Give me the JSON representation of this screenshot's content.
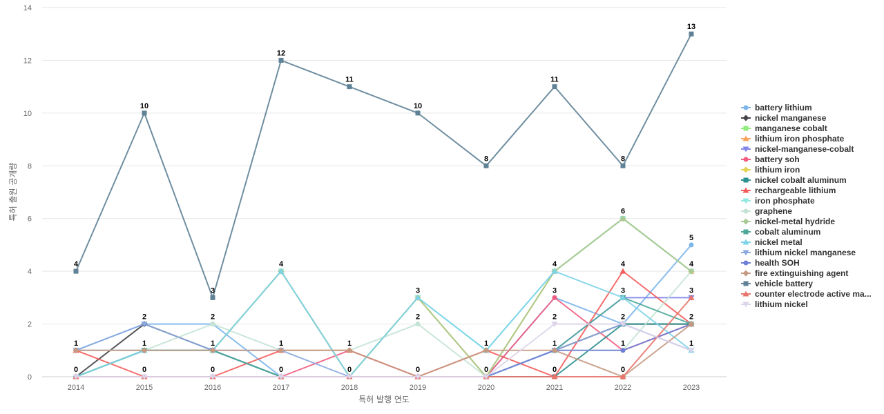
{
  "chart_data": {
    "type": "line",
    "title": "",
    "xlabel": "특허 발행 연도",
    "ylabel": "특허 출원 공개량",
    "ylim": [
      0,
      14
    ],
    "yticks": [
      0,
      2,
      4,
      6,
      8,
      10,
      12,
      14
    ],
    "x": [
      "2014",
      "2015",
      "2016",
      "2017",
      "2018",
      "2019",
      "2020",
      "2021",
      "2022",
      "2023"
    ],
    "grid": true,
    "legend_position": "right",
    "series": [
      {
        "name": "battery lithium",
        "color": "#7cb5ec",
        "marker": "circle",
        "values": [
          1,
          2,
          2,
          0,
          0,
          0,
          0,
          3,
          2,
          5
        ]
      },
      {
        "name": "nickel manganese",
        "color": "#434348",
        "marker": "diamond",
        "values": [
          0,
          2,
          1,
          0,
          0,
          0,
          0,
          1,
          2,
          2
        ]
      },
      {
        "name": "manganese cobalt",
        "color": "#90ed7d",
        "marker": "square",
        "values": [
          0,
          1,
          1,
          4,
          0,
          3,
          0,
          4,
          6,
          4
        ]
      },
      {
        "name": "lithium iron phosphate",
        "color": "#f7a35c",
        "marker": "triangle",
        "values": [
          0,
          1,
          1,
          4,
          0,
          3,
          0,
          4,
          6,
          4
        ]
      },
      {
        "name": "nickel-manganese-cobalt",
        "color": "#8085e9",
        "marker": "triangle-down",
        "values": [
          1,
          1,
          1,
          0,
          0,
          0,
          0,
          1,
          3,
          3
        ]
      },
      {
        "name": "battery soh",
        "color": "#f15c80",
        "marker": "circle",
        "values": [
          0,
          0,
          0,
          0,
          1,
          0,
          0,
          3,
          1,
          2
        ]
      },
      {
        "name": "lithium iron",
        "color": "#e4d354",
        "marker": "diamond",
        "values": [
          0,
          1,
          1,
          4,
          0,
          3,
          0,
          4,
          6,
          4
        ]
      },
      {
        "name": "nickel cobalt aluminum",
        "color": "#2b908f",
        "marker": "square",
        "values": [
          0,
          1,
          1,
          0,
          0,
          0,
          0,
          0,
          2,
          2
        ]
      },
      {
        "name": "rechargeable lithium",
        "color": "#f45b5b",
        "marker": "triangle",
        "values": [
          1,
          0,
          0,
          1,
          1,
          0,
          1,
          0,
          4,
          2
        ]
      },
      {
        "name": "iron phosphate",
        "color": "#91e8e1",
        "marker": "triangle-down",
        "values": [
          0,
          1,
          1,
          4,
          0,
          3,
          1,
          4,
          6,
          4
        ]
      },
      {
        "name": "graphene",
        "color": "#c4e3d4",
        "marker": "circle",
        "values": [
          1,
          1,
          2,
          1,
          1,
          2,
          0,
          1,
          1,
          4
        ]
      },
      {
        "name": "nickel-metal hydride",
        "color": "#a8c995",
        "marker": "diamond",
        "values": [
          0,
          1,
          1,
          4,
          0,
          3,
          0,
          4,
          6,
          4
        ]
      },
      {
        "name": "cobalt aluminum",
        "color": "#4fa89a",
        "marker": "square",
        "values": [
          0,
          1,
          1,
          0,
          0,
          0,
          0,
          1,
          3,
          2
        ]
      },
      {
        "name": "nickel metal",
        "color": "#7dd3e8",
        "marker": "triangle",
        "values": [
          0,
          1,
          1,
          4,
          0,
          3,
          1,
          4,
          3,
          1
        ]
      },
      {
        "name": "lithium nickel manganese",
        "color": "#8aa8e0",
        "marker": "triangle-down",
        "values": [
          1,
          2,
          1,
          1,
          0,
          0,
          0,
          1,
          2,
          1
        ]
      },
      {
        "name": "health SOH",
        "color": "#6f7fd6",
        "marker": "circle",
        "values": [
          0,
          0,
          0,
          0,
          0,
          0,
          0,
          1,
          1,
          2
        ]
      },
      {
        "name": "fire extinguishing agent",
        "color": "#c59a82",
        "marker": "diamond",
        "values": [
          1,
          1,
          1,
          1,
          1,
          0,
          1,
          1,
          0,
          2
        ]
      },
      {
        "name": "vehicle battery",
        "color": "#5f8296",
        "marker": "square",
        "values": [
          4,
          10,
          3,
          12,
          11,
          10,
          8,
          11,
          8,
          13
        ]
      },
      {
        "name": "counter electrode active ma...",
        "color": "#e8746b",
        "marker": "triangle",
        "values": [
          0,
          0,
          0,
          0,
          0,
          0,
          0,
          0,
          0,
          3
        ]
      },
      {
        "name": "lithium nickel",
        "color": "#dcd4ea",
        "marker": "triangle-down",
        "values": [
          0,
          0,
          0,
          0,
          0,
          0,
          0,
          2,
          2,
          1
        ]
      }
    ],
    "data_labels": [
      {
        "x": "2014",
        "y": 4,
        "text": "4"
      },
      {
        "x": "2014",
        "y": 1,
        "text": "1"
      },
      {
        "x": "2014",
        "y": 0,
        "text": "0"
      },
      {
        "x": "2015",
        "y": 10,
        "text": "10"
      },
      {
        "x": "2015",
        "y": 2,
        "text": "2"
      },
      {
        "x": "2015",
        "y": 1,
        "text": "1"
      },
      {
        "x": "2015",
        "y": 0,
        "text": "0"
      },
      {
        "x": "2016",
        "y": 3,
        "text": "3"
      },
      {
        "x": "2016",
        "y": 2,
        "text": "2"
      },
      {
        "x": "2016",
        "y": 1,
        "text": "1"
      },
      {
        "x": "2016",
        "y": 0,
        "text": "0"
      },
      {
        "x": "2017",
        "y": 12,
        "text": "12"
      },
      {
        "x": "2017",
        "y": 4,
        "text": "4"
      },
      {
        "x": "2017",
        "y": 1,
        "text": "1"
      },
      {
        "x": "2017",
        "y": 0,
        "text": "0"
      },
      {
        "x": "2018",
        "y": 11,
        "text": "11"
      },
      {
        "x": "2018",
        "y": 1,
        "text": "1"
      },
      {
        "x": "2018",
        "y": 0,
        "text": "0"
      },
      {
        "x": "2019",
        "y": 10,
        "text": "10"
      },
      {
        "x": "2019",
        "y": 3,
        "text": "3"
      },
      {
        "x": "2019",
        "y": 2,
        "text": "2"
      },
      {
        "x": "2019",
        "y": 0,
        "text": "0"
      },
      {
        "x": "2020",
        "y": 8,
        "text": "8"
      },
      {
        "x": "2020",
        "y": 1,
        "text": "1"
      },
      {
        "x": "2020",
        "y": 0,
        "text": "0"
      },
      {
        "x": "2021",
        "y": 11,
        "text": "11"
      },
      {
        "x": "2021",
        "y": 4,
        "text": "4"
      },
      {
        "x": "2021",
        "y": 3,
        "text": "3"
      },
      {
        "x": "2021",
        "y": 2,
        "text": "2"
      },
      {
        "x": "2021",
        "y": 1,
        "text": "1"
      },
      {
        "x": "2021",
        "y": 0,
        "text": "0"
      },
      {
        "x": "2022",
        "y": 8,
        "text": "8"
      },
      {
        "x": "2022",
        "y": 6,
        "text": "6"
      },
      {
        "x": "2022",
        "y": 4,
        "text": "4"
      },
      {
        "x": "2022",
        "y": 3,
        "text": "3"
      },
      {
        "x": "2022",
        "y": 2,
        "text": "2"
      },
      {
        "x": "2022",
        "y": 1,
        "text": "1"
      },
      {
        "x": "2022",
        "y": 0,
        "text": "0"
      },
      {
        "x": "2023",
        "y": 13,
        "text": "13"
      },
      {
        "x": "2023",
        "y": 5,
        "text": "5"
      },
      {
        "x": "2023",
        "y": 4,
        "text": "4"
      },
      {
        "x": "2023",
        "y": 3,
        "text": "3"
      },
      {
        "x": "2023",
        "y": 2,
        "text": "2"
      },
      {
        "x": "2023",
        "y": 1,
        "text": "1"
      }
    ]
  }
}
